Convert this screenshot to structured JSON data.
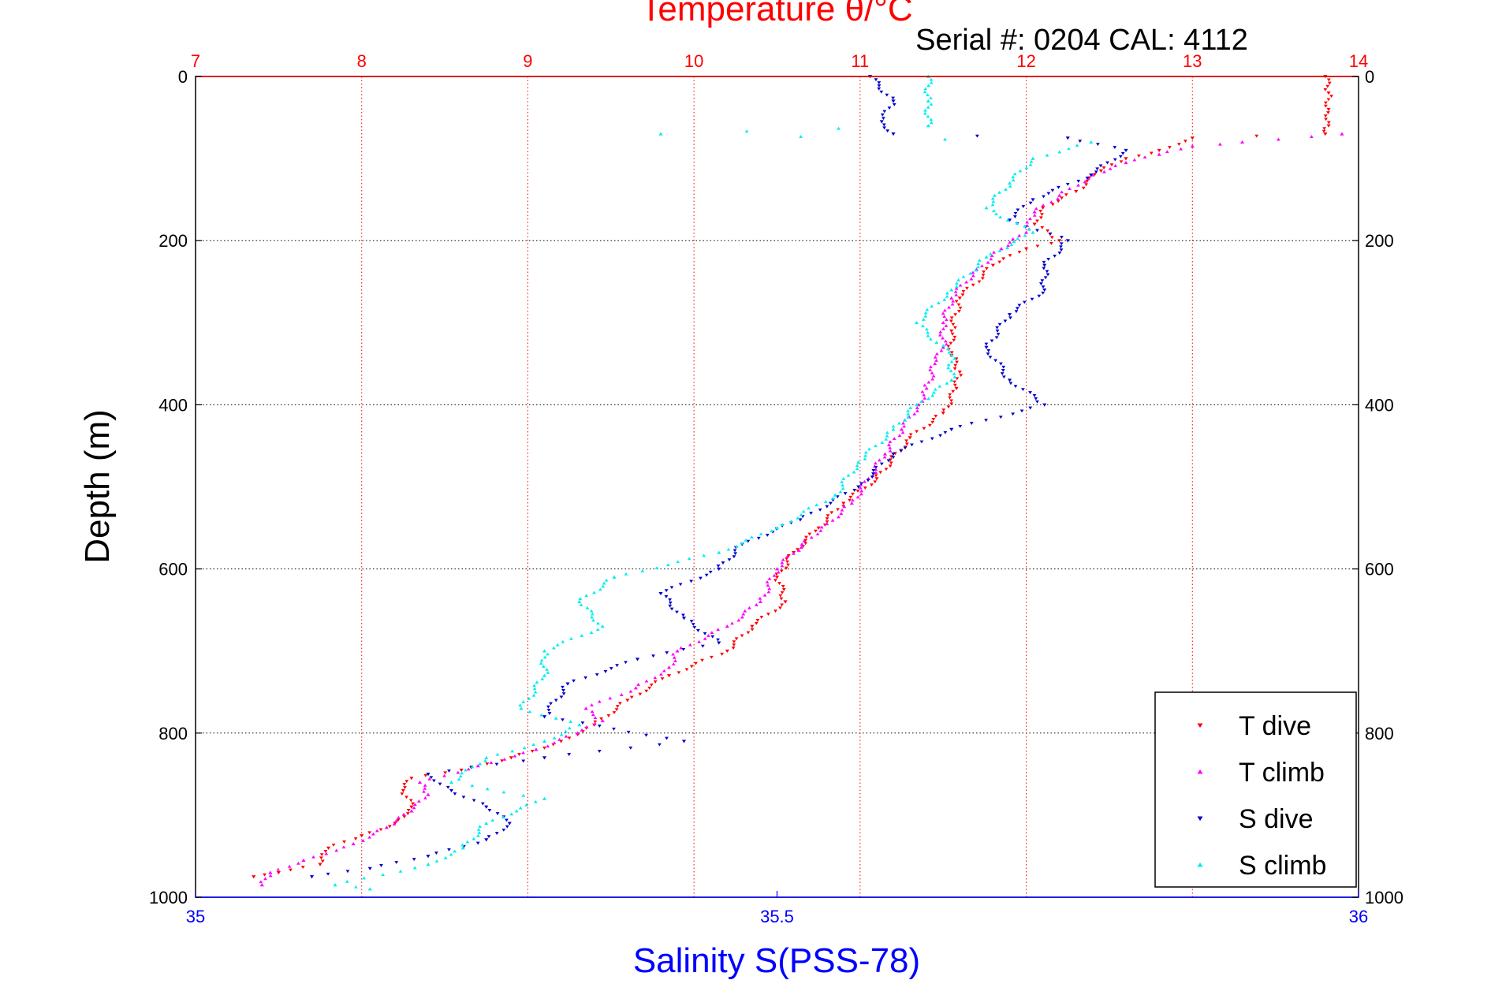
{
  "figure": {
    "top_title": "Temperature θ/°C",
    "serial_text": "Serial #: 0204  CAL: 4112"
  },
  "chart_data": {
    "type": "scatter",
    "title": "Temperature θ/°C",
    "subtitle": "Serial #: 0204  CAL: 4112",
    "ylabel": "Depth (m)",
    "xlabel_bottom": "Salinity S(PSS-78)",
    "xlabel_top": "Temperature θ/°C",
    "ylim": [
      0,
      1000
    ],
    "y_reversed": true,
    "y_ticks": [
      0,
      200,
      400,
      600,
      800,
      1000
    ],
    "x_top_lim": [
      7,
      14
    ],
    "x_top_ticks": [
      7,
      8,
      9,
      10,
      11,
      12,
      13,
      14
    ],
    "x_bottom_lim": [
      35,
      36
    ],
    "x_bottom_ticks": [
      "35",
      "35.5",
      "36"
    ],
    "grid": true,
    "legend_placement": "bottom-right",
    "colors": {
      "temperature_axis": "#ff0000",
      "salinity_axis": "#0000ff",
      "grid": "#000000"
    },
    "series": [
      {
        "name": "T dive",
        "axis": "temperature",
        "color": "#ff0000",
        "marker": "triangle-down",
        "points": [
          [
            13.8,
            0
          ],
          [
            13.82,
            20
          ],
          [
            13.82,
            40
          ],
          [
            13.82,
            60
          ],
          [
            13.8,
            70
          ],
          [
            13.0,
            75
          ],
          [
            12.8,
            90
          ],
          [
            12.6,
            100
          ],
          [
            12.45,
            115
          ],
          [
            12.3,
            140
          ],
          [
            12.1,
            160
          ],
          [
            12.05,
            180
          ],
          [
            12.2,
            200
          ],
          [
            12.0,
            210
          ],
          [
            11.8,
            230
          ],
          [
            11.6,
            270
          ],
          [
            11.55,
            310
          ],
          [
            11.55,
            340
          ],
          [
            11.6,
            360
          ],
          [
            11.58,
            380
          ],
          [
            11.5,
            410
          ],
          [
            11.3,
            440
          ],
          [
            11.1,
            490
          ],
          [
            10.9,
            520
          ],
          [
            10.75,
            550
          ],
          [
            10.6,
            580
          ],
          [
            10.5,
            610
          ],
          [
            10.55,
            640
          ],
          [
            10.35,
            670
          ],
          [
            10.2,
            700
          ],
          [
            9.85,
            730
          ],
          [
            9.6,
            760
          ],
          [
            9.4,
            790
          ],
          [
            9.2,
            810
          ],
          [
            8.9,
            830
          ],
          [
            8.6,
            845
          ],
          [
            8.3,
            855
          ],
          [
            8.25,
            870
          ],
          [
            8.3,
            890
          ],
          [
            8.2,
            910
          ],
          [
            8.0,
            925
          ],
          [
            7.8,
            940
          ],
          [
            7.75,
            960
          ],
          [
            7.5,
            970
          ],
          [
            7.35,
            975
          ]
        ]
      },
      {
        "name": "T climb",
        "axis": "temperature",
        "color": "#ff00ff",
        "marker": "triangle-up",
        "points": [
          [
            13.9,
            70
          ],
          [
            13.3,
            80
          ],
          [
            13.0,
            85
          ],
          [
            12.8,
            95
          ],
          [
            12.6,
            105
          ],
          [
            12.4,
            120
          ],
          [
            12.2,
            145
          ],
          [
            12.05,
            165
          ],
          [
            12.0,
            190
          ],
          [
            11.85,
            210
          ],
          [
            11.7,
            235
          ],
          [
            11.55,
            270
          ],
          [
            11.5,
            300
          ],
          [
            11.5,
            330
          ],
          [
            11.45,
            350
          ],
          [
            11.4,
            380
          ],
          [
            11.35,
            400
          ],
          [
            11.25,
            430
          ],
          [
            11.15,
            460
          ],
          [
            11.05,
            490
          ],
          [
            10.95,
            520
          ],
          [
            10.8,
            545
          ],
          [
            10.65,
            570
          ],
          [
            10.5,
            600
          ],
          [
            10.4,
            640
          ],
          [
            10.2,
            670
          ],
          [
            9.9,
            700
          ],
          [
            9.85,
            720
          ],
          [
            9.65,
            745
          ],
          [
            9.35,
            770
          ],
          [
            9.45,
            785
          ],
          [
            9.3,
            800
          ],
          [
            9.05,
            820
          ],
          [
            8.7,
            840
          ],
          [
            8.35,
            860
          ],
          [
            8.4,
            875
          ],
          [
            8.3,
            895
          ],
          [
            8.15,
            915
          ],
          [
            7.95,
            935
          ],
          [
            7.65,
            955
          ],
          [
            7.45,
            970
          ],
          [
            7.4,
            985
          ]
        ]
      },
      {
        "name": "S dive",
        "axis": "salinity",
        "color": "#0000cc",
        "marker": "triangle-down",
        "points": [
          [
            35.58,
            0
          ],
          [
            35.6,
            30
          ],
          [
            35.59,
            55
          ],
          [
            35.6,
            70
          ],
          [
            35.75,
            75
          ],
          [
            35.8,
            90
          ],
          [
            35.77,
            120
          ],
          [
            35.72,
            150
          ],
          [
            35.7,
            175
          ],
          [
            35.75,
            200
          ],
          [
            35.73,
            230
          ],
          [
            35.73,
            260
          ],
          [
            35.7,
            290
          ],
          [
            35.68,
            330
          ],
          [
            35.7,
            370
          ],
          [
            35.73,
            400
          ],
          [
            35.65,
            430
          ],
          [
            35.6,
            460
          ],
          [
            35.57,
            500
          ],
          [
            35.52,
            540
          ],
          [
            35.47,
            570
          ],
          [
            35.45,
            600
          ],
          [
            35.4,
            630
          ],
          [
            35.42,
            660
          ],
          [
            35.45,
            690
          ],
          [
            35.38,
            710
          ],
          [
            35.32,
            740
          ],
          [
            35.3,
            780
          ],
          [
            35.42,
            810
          ],
          [
            35.3,
            830
          ],
          [
            35.2,
            850
          ],
          [
            35.22,
            870
          ],
          [
            35.25,
            890
          ],
          [
            35.27,
            910
          ],
          [
            35.25,
            930
          ],
          [
            35.2,
            950
          ],
          [
            35.15,
            965
          ],
          [
            35.1,
            975
          ]
        ]
      },
      {
        "name": "S climb",
        "axis": "salinity",
        "color": "#00eeee",
        "marker": "triangle-up",
        "points": [
          [
            35.63,
            0
          ],
          [
            35.63,
            30
          ],
          [
            35.63,
            60
          ],
          [
            35.4,
            70
          ],
          [
            35.77,
            80
          ],
          [
            35.72,
            100
          ],
          [
            35.7,
            130
          ],
          [
            35.68,
            160
          ],
          [
            35.72,
            190
          ],
          [
            35.68,
            220
          ],
          [
            35.65,
            260
          ],
          [
            35.62,
            300
          ],
          [
            35.65,
            340
          ],
          [
            35.65,
            370
          ],
          [
            35.62,
            400
          ],
          [
            35.6,
            430
          ],
          [
            35.57,
            470
          ],
          [
            35.55,
            510
          ],
          [
            35.5,
            550
          ],
          [
            35.45,
            580
          ],
          [
            35.36,
            610
          ],
          [
            35.33,
            640
          ],
          [
            35.35,
            670
          ],
          [
            35.3,
            700
          ],
          [
            35.3,
            730
          ],
          [
            35.28,
            770
          ],
          [
            35.33,
            790
          ],
          [
            35.3,
            810
          ],
          [
            35.25,
            830
          ],
          [
            35.22,
            860
          ],
          [
            35.3,
            880
          ],
          [
            35.25,
            910
          ],
          [
            35.23,
            940
          ],
          [
            35.2,
            960
          ],
          [
            35.12,
            985
          ],
          [
            35.15,
            990
          ]
        ]
      }
    ]
  }
}
